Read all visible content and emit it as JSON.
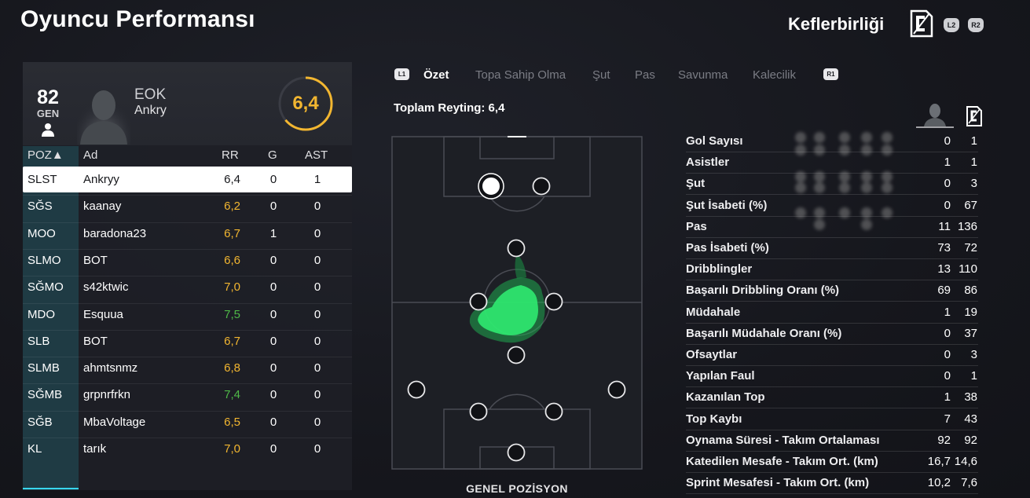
{
  "header": {
    "title": "Oyuncu Performansı",
    "club": "Keflerbirliği",
    "btn_left": "L2",
    "btn_right": "R2"
  },
  "player_card": {
    "overall": "82",
    "overall_label": "GEN",
    "nickname": "EOK",
    "name": "Ankry",
    "rating": "6,4"
  },
  "table": {
    "headers": {
      "pos": "POZ▲",
      "name": "Ad",
      "rr": "RR",
      "g": "G",
      "ast": "AST"
    },
    "rows": [
      {
        "pos": "SLST",
        "name": "Ankryy",
        "rr": "6,4",
        "g": "0",
        "ast": "1",
        "rr_color": "#15161a"
      },
      {
        "pos": "SĞS",
        "name": "kaanay",
        "rr": "6,2",
        "g": "0",
        "ast": "0",
        "rr_color": "#f2b630"
      },
      {
        "pos": "MOO",
        "name": "baradona23",
        "rr": "6,7",
        "g": "1",
        "ast": "0",
        "rr_color": "#f2b630"
      },
      {
        "pos": "SLMO",
        "name": "BOT",
        "rr": "6,6",
        "g": "0",
        "ast": "0",
        "rr_color": "#f2b630"
      },
      {
        "pos": "SĞMO",
        "name": "s42ktwic",
        "rr": "7,0",
        "g": "0",
        "ast": "0",
        "rr_color": "#f2b630"
      },
      {
        "pos": "MDO",
        "name": "Esquua",
        "rr": "7,5",
        "g": "0",
        "ast": "0",
        "rr_color": "#4fb948"
      },
      {
        "pos": "SLB",
        "name": "BOT",
        "rr": "6,7",
        "g": "0",
        "ast": "0",
        "rr_color": "#f2b630"
      },
      {
        "pos": "SLMB",
        "name": "ahmtsnmz",
        "rr": "6,8",
        "g": "0",
        "ast": "0",
        "rr_color": "#f2b630"
      },
      {
        "pos": "SĞMB",
        "name": "grpnrfrkn",
        "rr": "7,4",
        "g": "0",
        "ast": "0",
        "rr_color": "#4fb948"
      },
      {
        "pos": "SĞB",
        "name": "MbaVoltage",
        "rr": "6,5",
        "g": "0",
        "ast": "0",
        "rr_color": "#f2b630"
      },
      {
        "pos": "KL",
        "name": "tarık",
        "rr": "7,0",
        "g": "0",
        "ast": "0",
        "rr_color": "#f2b630"
      }
    ]
  },
  "tabs": {
    "left_chip": "L1",
    "right_chip": "R1",
    "items": [
      "Özet",
      "Topa Sahip Olma",
      "Şut",
      "Pas",
      "Savunma",
      "Kalecilik"
    ],
    "active": "Özet"
  },
  "summary": {
    "total_rating": "Toplam Reyting: 6,4"
  },
  "pitch": {
    "caption": "GENEL POZİSYON",
    "heat_color": "#2ee86f"
  },
  "stats": [
    {
      "label": "Gol Sayısı",
      "player": "0",
      "club": "1"
    },
    {
      "label": "Asistler",
      "player": "1",
      "club": "1"
    },
    {
      "label": "Şut",
      "player": "0",
      "club": "3"
    },
    {
      "label": "Şut İsabeti (%)",
      "player": "0",
      "club": "67"
    },
    {
      "label": "Pas",
      "player": "11",
      "club": "136"
    },
    {
      "label": "Pas İsabeti (%)",
      "player": "73",
      "club": "72"
    },
    {
      "label": "Dribblingler",
      "player": "13",
      "club": "110"
    },
    {
      "label": "Başarılı Dribbling Oranı (%)",
      "player": "69",
      "club": "86"
    },
    {
      "label": "Müdahale",
      "player": "1",
      "club": "19"
    },
    {
      "label": "Başarılı Müdahale Oranı (%)",
      "player": "0",
      "club": "37"
    },
    {
      "label": "Ofsaytlar",
      "player": "0",
      "club": "3"
    },
    {
      "label": "Yapılan Faul",
      "player": "0",
      "club": "1"
    },
    {
      "label": "Kazanılan Top",
      "player": "1",
      "club": "38"
    },
    {
      "label": "Top Kaybı",
      "player": "7",
      "club": "43"
    },
    {
      "label": "Oynama Süresi - Takım Ortalaması",
      "player": "92",
      "club": "92"
    },
    {
      "label": "Katedilen Mesafe - Takım Ort. (km)",
      "player": "16,7",
      "club": "14,6"
    },
    {
      "label": "Sprint Mesafesi - Takım Ort. (km)",
      "player": "10,2",
      "club": "7,6"
    }
  ]
}
